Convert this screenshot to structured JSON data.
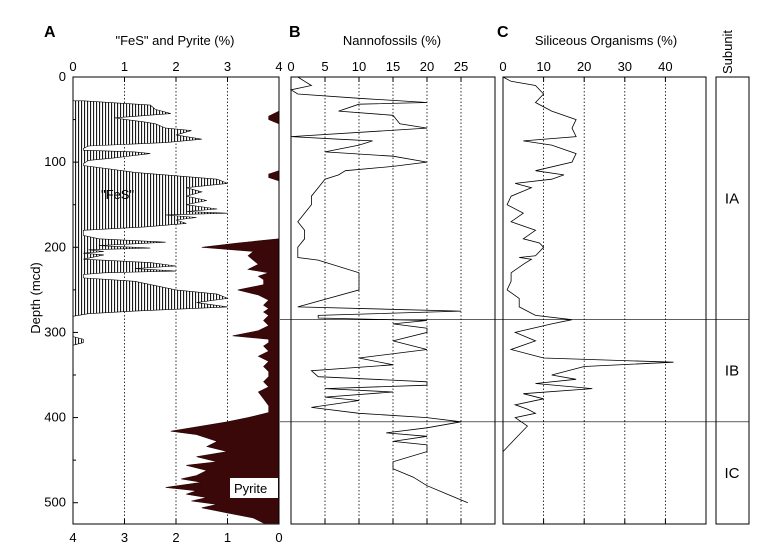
{
  "chart_data": [
    {
      "type": "area",
      "panel_letter": "A",
      "title": "\"FeS\" and Pyrite (%)",
      "ylabel": "Depth (mcd)",
      "ylim": [
        0,
        525
      ],
      "y_inverted": true,
      "yticks": [
        "0",
        "100",
        "200",
        "300",
        "400",
        "500"
      ],
      "xticks_top": [
        "0",
        "1",
        "2",
        "3",
        "4"
      ],
      "xticks_bottom": [
        "4",
        "3",
        "2",
        "1",
        "0"
      ],
      "grid": "vertical dotted",
      "annotations": [
        "\"FeS\"",
        "Pyrite"
      ],
      "series": [
        {
          "name": "\"FeS\"",
          "axis": "top",
          "fill": "hatched",
          "depth": [
            28,
            33,
            38,
            43,
            48,
            53,
            55,
            60,
            63,
            68,
            73,
            77,
            81,
            84,
            86,
            88,
            90,
            95,
            98,
            102,
            104,
            112,
            115,
            120,
            125,
            130,
            135,
            140,
            145,
            150,
            155,
            158,
            160,
            162,
            165,
            168,
            172,
            176,
            180,
            186,
            190,
            194,
            198,
            201,
            203,
            205,
            207,
            209,
            214,
            218,
            222,
            225,
            228,
            230,
            232,
            236,
            240,
            250,
            255,
            260,
            265,
            270,
            275,
            278,
            281,
            305,
            308,
            312,
            315
          ],
          "value": [
            0.2,
            1.5,
            1.6,
            1.9,
            0.8,
            1.4,
            1.6,
            1.8,
            2.3,
            2.0,
            2.5,
            1.8,
            0.3,
            0.2,
            0.2,
            1.2,
            1.5,
            0.8,
            0.3,
            0.2,
            0.2,
            1.2,
            1.8,
            2.8,
            3.0,
            2.2,
            2.5,
            2.2,
            2.6,
            2.2,
            2.8,
            2.2,
            3.0,
            1.8,
            2.4,
            2.0,
            2.2,
            1.4,
            0.2,
            0.2,
            0.5,
            1.8,
            0.5,
            1.5,
            0.3,
            0.6,
            0.2,
            0.6,
            0.2,
            1.5,
            2.0,
            1.2,
            2.0,
            0.6,
            0.2,
            0.2,
            1.2,
            2.0,
            2.8,
            3.0,
            2.4,
            3.0,
            1.2,
            0.3,
            0.0,
            0.0,
            0.2,
            0.2,
            0.0
          ]
        },
        {
          "name": "Pyrite",
          "axis": "bottom",
          "fill": "solid",
          "depth": [
            40,
            46,
            50,
            55,
            110,
            114,
            118,
            122,
            190,
            195,
            200,
            205,
            210,
            215,
            220,
            226,
            230,
            234,
            238,
            244,
            250,
            256,
            262,
            268,
            272,
            276,
            280,
            286,
            292,
            298,
            304,
            308,
            312,
            316,
            322,
            328,
            334,
            340,
            346,
            352,
            358,
            364,
            370,
            378,
            386,
            394,
            400,
            405,
            410,
            416,
            420,
            428,
            434,
            440,
            446,
            452,
            456,
            462,
            468,
            472,
            476,
            482,
            486,
            490,
            494,
            498,
            502,
            506,
            512,
            518,
            524
          ],
          "value": [
            0.0,
            0.2,
            0.2,
            0.0,
            0.0,
            0.2,
            0.2,
            0.0,
            0.0,
            0.8,
            1.5,
            0.5,
            0.6,
            0.5,
            0.4,
            0.6,
            0.2,
            0.4,
            0.3,
            0.3,
            0.8,
            0.4,
            0.2,
            0.3,
            0.2,
            0.3,
            0.2,
            0.3,
            0.2,
            0.4,
            0.9,
            0.2,
            0.2,
            0.3,
            0.2,
            0.4,
            0.2,
            0.3,
            0.2,
            0.2,
            0.3,
            0.2,
            0.4,
            0.3,
            0.2,
            0.2,
            0.6,
            1.0,
            1.5,
            2.1,
            1.6,
            1.2,
            1.4,
            1.0,
            1.6,
            1.2,
            1.8,
            1.4,
            1.6,
            1.9,
            1.5,
            2.2,
            1.6,
            1.8,
            1.4,
            1.7,
            1.2,
            1.5,
            1.0,
            0.5,
            0.3
          ]
        }
      ]
    },
    {
      "type": "line",
      "panel_letter": "B",
      "title": "Nannofossils (%)",
      "xlim": [
        0,
        30
      ],
      "xticks": [
        "0",
        "5",
        "10",
        "15",
        "20",
        "25"
      ],
      "ylim": [
        0,
        525
      ],
      "y_inverted": true,
      "grid": "vertical dotted",
      "series": [
        {
          "name": "",
          "depth": [
            0,
            5,
            10,
            15,
            20,
            25,
            30,
            32,
            40,
            45,
            55,
            60,
            70,
            73,
            75,
            80,
            88,
            93,
            100,
            105,
            110,
            115,
            120,
            130,
            140,
            150,
            160,
            170,
            180,
            190,
            200,
            212,
            215,
            230,
            250,
            270,
            275,
            280,
            283,
            286,
            290,
            295,
            300,
            310,
            320,
            330,
            338,
            345,
            352,
            358,
            362,
            366,
            370,
            376,
            380,
            388,
            395,
            400,
            405,
            412,
            418,
            422,
            428,
            432,
            440,
            452,
            460,
            470,
            480,
            490,
            500
          ],
          "value": [
            1,
            2,
            3,
            0,
            1,
            10,
            20,
            10,
            7,
            15,
            16,
            20,
            0,
            7,
            12,
            10,
            5,
            15,
            20,
            15,
            8,
            7,
            5,
            4,
            3,
            3,
            2,
            1,
            2,
            2,
            1,
            1,
            4,
            10,
            10,
            1,
            25,
            4,
            4,
            20,
            15,
            20,
            20,
            15,
            20,
            10,
            15,
            3,
            4,
            20,
            20,
            5,
            15,
            5,
            10,
            3,
            10,
            20,
            25,
            20,
            14,
            20,
            15,
            20,
            20,
            15,
            15,
            18,
            20,
            23,
            26
          ]
        }
      ]
    },
    {
      "type": "line",
      "panel_letter": "C",
      "title": "Siliceous Organisms (%)",
      "xlim": [
        0,
        50
      ],
      "xticks": [
        "0",
        "10",
        "20",
        "30",
        "40"
      ],
      "ylim": [
        0,
        525
      ],
      "y_inverted": true,
      "grid": "vertical dotted",
      "series": [
        {
          "name": "",
          "depth": [
            0,
            5,
            10,
            20,
            30,
            40,
            50,
            60,
            70,
            75,
            80,
            90,
            100,
            110,
            115,
            120,
            125,
            130,
            140,
            150,
            160,
            170,
            180,
            190,
            195,
            200,
            210,
            212,
            214,
            220,
            230,
            240,
            250,
            260,
            270,
            280,
            285,
            290,
            300,
            310,
            320,
            330,
            335,
            340,
            345,
            350,
            355,
            360,
            366,
            372,
            378,
            385,
            390,
            395,
            400,
            410,
            420,
            430,
            440,
            450
          ],
          "value": [
            0,
            2,
            8,
            10,
            8,
            12,
            18,
            17,
            18,
            5,
            12,
            18,
            17,
            8,
            15,
            12,
            3,
            7,
            2,
            1,
            5,
            2,
            8,
            5,
            9,
            10,
            8,
            4,
            7,
            5,
            2,
            2,
            1,
            4,
            4,
            8,
            17,
            12,
            3,
            8,
            2,
            10,
            42,
            20,
            16,
            12,
            18,
            8,
            22,
            5,
            10,
            3,
            6,
            8,
            3,
            6,
            4,
            2,
            0,
            0
          ]
        }
      ]
    },
    {
      "type": "table",
      "panel_letter": "",
      "title": "Subunit",
      "units": [
        {
          "label": "IA",
          "top": 0,
          "bottom": 285
        },
        {
          "label": "IB",
          "top": 285,
          "bottom": 405
        },
        {
          "label": "IC",
          "top": 405,
          "bottom": 525
        }
      ]
    }
  ]
}
